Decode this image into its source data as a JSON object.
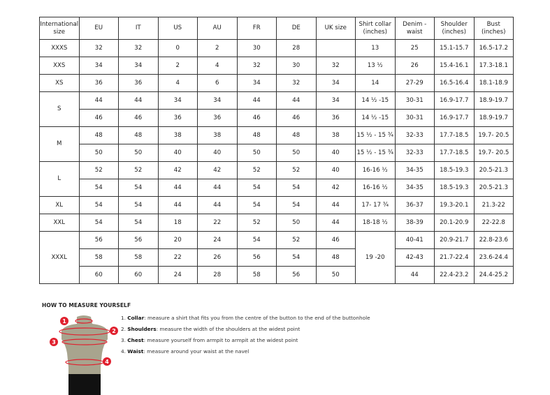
{
  "table": {
    "headers": [
      "International size",
      "EU",
      "IT",
      "US",
      "AU",
      "FR",
      "DE",
      "UK size",
      "Shirt collar (inches)",
      "Denim - waist",
      "Shoulder (inches)",
      "Bust (inches)"
    ],
    "groups": [
      {
        "size": "XXXS",
        "rows": [
          [
            "32",
            "32",
            "0",
            "2",
            "30",
            "28",
            "",
            "13",
            "25",
            "15.1-15.7",
            "16.5-17.2"
          ]
        ]
      },
      {
        "size": "XXS",
        "rows": [
          [
            "34",
            "34",
            "2",
            "4",
            "32",
            "30",
            "32",
            "13 ½",
            "26",
            "15.4-16.1",
            "17.3-18.1"
          ]
        ]
      },
      {
        "size": "XS",
        "rows": [
          [
            "36",
            "36",
            "4",
            "6",
            "34",
            "32",
            "34",
            "14",
            "27-29",
            "16.5-16.4",
            "18.1-18.9"
          ]
        ]
      },
      {
        "size": "S",
        "rows": [
          [
            "44",
            "44",
            "34",
            "34",
            "44",
            "44",
            "34",
            "14 ½ -15",
            "30-31",
            "16.9-17.7",
            "18.9-19.7"
          ],
          [
            "46",
            "46",
            "36",
            "36",
            "46",
            "46",
            "36",
            "14 ½ -15",
            "30-31",
            "16.9-17.7",
            "18.9-19.7"
          ]
        ]
      },
      {
        "size": "M",
        "rows": [
          [
            "48",
            "48",
            "38",
            "38",
            "48",
            "48",
            "38",
            "15 ½ - 15 ¾",
            "32-33",
            "17.7-18.5",
            "19.7- 20.5"
          ],
          [
            "50",
            "50",
            "40",
            "40",
            "50",
            "50",
            "40",
            "15 ½ - 15 ¾",
            "32-33",
            "17.7-18.5",
            "19.7- 20.5"
          ]
        ]
      },
      {
        "size": "L",
        "rows": [
          [
            "52",
            "52",
            "42",
            "42",
            "52",
            "52",
            "40",
            "16-16 ½",
            "34-35",
            "18.5-19.3",
            "20.5-21.3"
          ],
          [
            "54",
            "54",
            "44",
            "44",
            "54",
            "54",
            "42",
            "16-16 ½",
            "34-35",
            "18.5-19.3",
            "20.5-21.3"
          ]
        ]
      },
      {
        "size": "XL",
        "rows": [
          [
            "54",
            "54",
            "44",
            "44",
            "54",
            "54",
            "44",
            "17- 17 ¾",
            "36-37",
            "19.3-20.1",
            "21.3-22"
          ]
        ]
      },
      {
        "size": "XXL",
        "rows": [
          [
            "54",
            "54",
            "18",
            "22",
            "52",
            "50",
            "44",
            "18-18 ½",
            "38-39",
            "20.1-20.9",
            "22-22.8"
          ]
        ]
      },
      {
        "size": "XXXL",
        "collar": "19 -20",
        "rows": [
          [
            "56",
            "56",
            "20",
            "24",
            "54",
            "52",
            "46",
            "40-41",
            "20.9-21.7",
            "22.8-23.6"
          ],
          [
            "58",
            "58",
            "22",
            "26",
            "56",
            "54",
            "48",
            "42-43",
            "21.7-22.4",
            "23.6-24.4"
          ],
          [
            "60",
            "60",
            "24",
            "28",
            "58",
            "56",
            "50",
            "44",
            "22.4-23.2",
            "24.4-25.2"
          ]
        ]
      }
    ]
  },
  "howto": {
    "title": "HOW TO MEASURE YOURSELF",
    "markers": [
      "1",
      "2",
      "3",
      "4"
    ],
    "steps": [
      {
        "num": "1.",
        "term": "Collar",
        "text": ": measure a shirt that fits you from the centre of the button to the end of the buttonhole"
      },
      {
        "num": "2.",
        "term": "Shoulders",
        "text": ": measure the width of the shoulders at the widest point"
      },
      {
        "num": "3.",
        "term": "Chest",
        "text": ": measure yourself from armpit to armpit at the widest point"
      },
      {
        "num": "4.",
        "term": "Waist",
        "text": ": measure around your waist at the navel"
      }
    ],
    "colors": {
      "marker": "#e0202e",
      "torso": "#a8a48e",
      "shorts": "#111111"
    }
  }
}
